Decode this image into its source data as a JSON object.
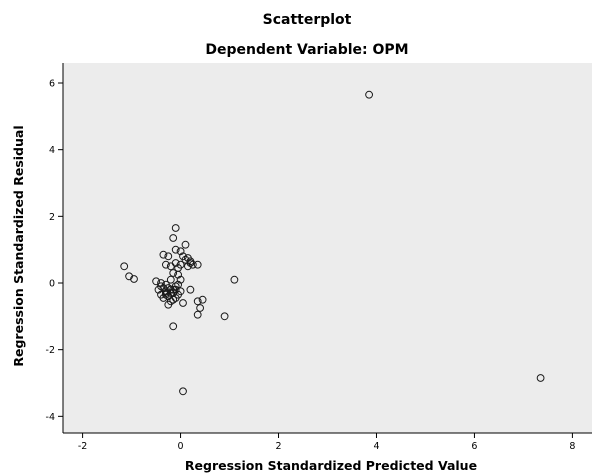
{
  "chart_data": {
    "type": "scatter",
    "title": "Scatterplot",
    "subtitle": "Dependent Variable: OPM",
    "xlabel": "Regression Standardized Predicted Value",
    "ylabel": "Regression Standardized Residual",
    "xlim": [
      -2.4,
      8.4
    ],
    "ylim": [
      -4.5,
      6.6
    ],
    "xticks": [
      -2,
      0,
      2,
      4,
      6,
      8
    ],
    "yticks": [
      -4,
      -2,
      0,
      2,
      4,
      6
    ],
    "x_tick_labels": [
      "-2",
      "0",
      "2",
      "4",
      "6",
      "8"
    ],
    "y_tick_labels": [
      "-4",
      "-2",
      "0",
      "2",
      "4",
      "6"
    ],
    "grid": false,
    "colors": {
      "plot_background": "#ececec",
      "axis": "#000000",
      "marker_stroke": "#1a1a1a"
    },
    "marker": "hollow-circle",
    "points": [
      [
        3.85,
        5.65
      ],
      [
        7.35,
        -2.85
      ],
      [
        0.05,
        -3.25
      ],
      [
        -1.15,
        0.5
      ],
      [
        -1.05,
        0.2
      ],
      [
        -0.95,
        0.12
      ],
      [
        -0.5,
        0.05
      ],
      [
        -0.4,
        0.0
      ],
      [
        -0.45,
        -0.2
      ],
      [
        -0.35,
        0.85
      ],
      [
        -0.25,
        0.8
      ],
      [
        -0.3,
        0.55
      ],
      [
        -0.2,
        0.5
      ],
      [
        -0.1,
        1.65
      ],
      [
        -0.15,
        1.35
      ],
      [
        -0.1,
        1.0
      ],
      [
        0.0,
        0.95
      ],
      [
        0.1,
        1.15
      ],
      [
        0.05,
        0.8
      ],
      [
        0.1,
        0.7
      ],
      [
        0.15,
        0.75
      ],
      [
        0.2,
        0.6
      ],
      [
        0.25,
        0.55
      ],
      [
        0.35,
        0.55
      ],
      [
        0.0,
        0.55
      ],
      [
        -0.1,
        0.6
      ],
      [
        -0.05,
        0.45
      ],
      [
        -0.15,
        0.3
      ],
      [
        -0.05,
        0.25
      ],
      [
        0.15,
        0.5
      ],
      [
        0.2,
        0.65
      ],
      [
        -0.2,
        0.1
      ],
      [
        -0.3,
        -0.05
      ],
      [
        -0.35,
        -0.15
      ],
      [
        -0.4,
        -0.35
      ],
      [
        -0.35,
        -0.45
      ],
      [
        -0.3,
        -0.25
      ],
      [
        -0.25,
        -0.4
      ],
      [
        -0.2,
        -0.3
      ],
      [
        -0.15,
        -0.2
      ],
      [
        -0.1,
        -0.1
      ],
      [
        -0.05,
        -0.35
      ],
      [
        0.0,
        -0.25
      ],
      [
        -0.1,
        -0.45
      ],
      [
        -0.2,
        -0.55
      ],
      [
        -0.25,
        -0.65
      ],
      [
        -0.15,
        -0.5
      ],
      [
        0.05,
        -0.6
      ],
      [
        -0.05,
        -0.05
      ],
      [
        -0.3,
        -0.3
      ],
      [
        -0.4,
        -0.1
      ],
      [
        -0.25,
        -0.15
      ],
      [
        0.0,
        0.1
      ],
      [
        0.2,
        -0.2
      ],
      [
        0.35,
        -0.55
      ],
      [
        0.45,
        -0.5
      ],
      [
        0.35,
        -0.95
      ],
      [
        0.4,
        -0.75
      ],
      [
        0.9,
        -1.0
      ],
      [
        1.1,
        0.1
      ],
      [
        -0.15,
        -1.3
      ],
      [
        -0.2,
        -0.2
      ],
      [
        -0.1,
        -0.2
      ],
      [
        -0.3,
        -0.35
      ],
      [
        -0.15,
        -0.3
      ]
    ]
  }
}
